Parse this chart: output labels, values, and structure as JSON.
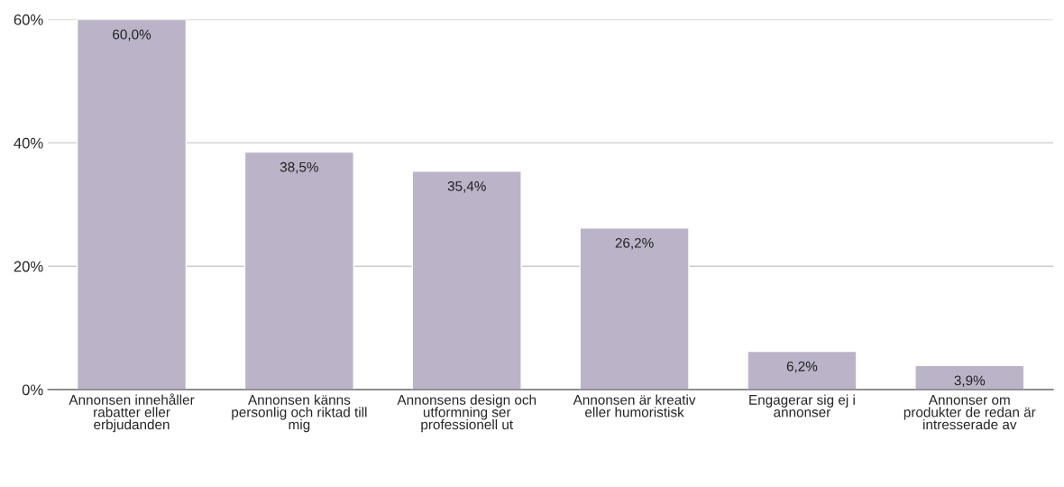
{
  "chart_data": {
    "type": "bar",
    "categories": [
      "Annonsen innehåller\nrabatter eller\nerbjudanden",
      "Annonsen känns\npersonlig och riktad till\nmig",
      "Annonsens design och\nutformning ser\nprofessionell ut",
      "Annonsen är kreativ\neller humoristisk",
      "Engagerar sig ej i\nannonser",
      "Annonser om\nprodukter de redan är\nintresserade av"
    ],
    "values": [
      60.0,
      38.5,
      35.4,
      26.2,
      6.2,
      3.9
    ],
    "value_labels": [
      "60,0%",
      "38,5%",
      "35,4%",
      "26,2%",
      "6,2%",
      "3,9%"
    ],
    "color": "#bbb3c8",
    "ylim": [
      0,
      60
    ],
    "yticks": [
      {
        "value": 0,
        "label": "0%"
      },
      {
        "value": 20,
        "label": "20%"
      },
      {
        "value": 40,
        "label": "40%"
      },
      {
        "value": 60,
        "label": "60%"
      }
    ],
    "grid": "y",
    "legend": false
  }
}
